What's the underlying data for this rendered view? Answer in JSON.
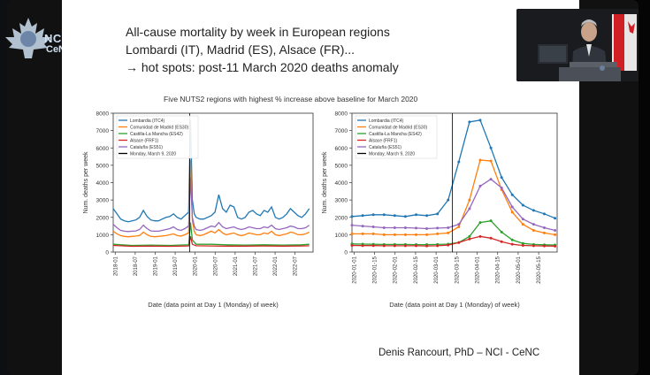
{
  "slide": {
    "title_lines": [
      "All-cause mortality by week in European regions",
      "Lombardi (IT), Madrid (ES), Alsace (FR)...",
      "→ hot spots: post-11 March 2020 deaths anomaly"
    ],
    "figure_title": "Five NUTS2 regions with highest % increase above baseline for March 2020",
    "author": "Denis Rancourt, PhD  –  NCI - CeNC",
    "logo_text": "NCI",
    "logo_sub": "CeNC"
  },
  "colors": {
    "lombardia": "#1f77b4",
    "madrid": "#ff7f0e",
    "castilla": "#2ca02c",
    "alsace": "#d62728",
    "cataluna": "#9467bd",
    "monday": "#000000"
  },
  "chart_data": [
    {
      "type": "line",
      "xlabel": "Date (data point at Day 1 (Monday) of week)",
      "ylabel": "Num. deaths per week",
      "ylim": [
        0,
        8000
      ],
      "yticks": [
        "0",
        "1000",
        "2000",
        "3000",
        "4000",
        "5000",
        "6000",
        "7000",
        "8000"
      ],
      "xticks": [
        "2018-01",
        "2018-07",
        "2019-01",
        "2019-07",
        "2020-01",
        "2020-07",
        "2021-01",
        "2021-07",
        "2022-01",
        "2022-07"
      ],
      "xrange": [
        0,
        5.3
      ],
      "vline_x": 2.03,
      "legend": [
        "Lombardia (ITC4)",
        "Comunidad de Madrid (ES30)",
        "Castilla-La Mancha (ES42)",
        "Alsace (FRF1)",
        "Cataluña (ES51)",
        "Monday, March 9, 2020"
      ],
      "series": [
        {
          "name": "Lombardia (ITC4)",
          "x": [
            0,
            0.1,
            0.2,
            0.3,
            0.4,
            0.5,
            0.6,
            0.7,
            0.8,
            0.9,
            1.0,
            1.1,
            1.2,
            1.3,
            1.4,
            1.5,
            1.6,
            1.7,
            1.8,
            1.9,
            2.0,
            2.05,
            2.1,
            2.15,
            2.2,
            2.3,
            2.4,
            2.5,
            2.6,
            2.7,
            2.8,
            2.9,
            3.0,
            3.1,
            3.2,
            3.3,
            3.4,
            3.5,
            3.6,
            3.7,
            3.8,
            3.9,
            4.0,
            4.1,
            4.2,
            4.3,
            4.4,
            4.5,
            4.6,
            4.7,
            4.8,
            4.9,
            5.0,
            5.1,
            5.2
          ],
          "values": [
            2500,
            2200,
            1900,
            1800,
            1750,
            1800,
            1850,
            2000,
            2400,
            2050,
            1850,
            1800,
            1800,
            1900,
            2000,
            2050,
            2200,
            2000,
            1900,
            2100,
            2300,
            7600,
            3000,
            2200,
            2000,
            1900,
            1900,
            2000,
            2100,
            2300,
            3300,
            2500,
            2300,
            2700,
            2600,
            2000,
            1900,
            2000,
            2300,
            2400,
            2200,
            2100,
            2400,
            2300,
            2600,
            2000,
            1900,
            2000,
            2200,
            2500,
            2300,
            2100,
            2000,
            2200,
            2500
          ]
        },
        {
          "name": "Comunidad de Madrid (ES30)",
          "x": [
            0,
            0.1,
            0.2,
            0.3,
            0.4,
            0.5,
            0.6,
            0.7,
            0.8,
            0.9,
            1.0,
            1.1,
            1.2,
            1.3,
            1.4,
            1.5,
            1.6,
            1.7,
            1.8,
            1.9,
            2.0,
            2.05,
            2.1,
            2.15,
            2.2,
            2.3,
            2.4,
            2.5,
            2.6,
            2.7,
            2.8,
            2.9,
            3.0,
            3.1,
            3.2,
            3.3,
            3.4,
            3.5,
            3.6,
            3.7,
            3.8,
            3.9,
            4.0,
            4.1,
            4.2,
            4.3,
            4.4,
            4.5,
            4.6,
            4.7,
            4.8,
            4.9,
            5.0,
            5.1,
            5.2
          ],
          "values": [
            1200,
            1050,
            950,
            900,
            880,
            900,
            920,
            950,
            1150,
            1000,
            900,
            880,
            900,
            920,
            950,
            1000,
            1050,
            950,
            920,
            1000,
            1100,
            5300,
            1800,
            1200,
            1000,
            950,
            1000,
            1100,
            1200,
            1100,
            1300,
            1100,
            1000,
            1050,
            1100,
            1000,
            950,
            1000,
            1100,
            1050,
            1000,
            1000,
            1100,
            1050,
            1200,
            1000,
            950,
            1000,
            1050,
            1150,
            1100,
            1000,
            1000,
            1050,
            1150
          ]
        },
        {
          "name": "Castilla-La Mancha (ES42)",
          "x": [
            0,
            0.5,
            1.0,
            1.5,
            2.0,
            2.05,
            2.1,
            2.2,
            2.6,
            3.0,
            3.5,
            4.0,
            4.5,
            5.0,
            5.2
          ],
          "values": [
            450,
            380,
            400,
            380,
            420,
            1700,
            700,
            450,
            450,
            420,
            400,
            420,
            400,
            420,
            450
          ]
        },
        {
          "name": "Alsace (FRF1)",
          "x": [
            0,
            0.5,
            1.0,
            1.5,
            2.0,
            2.05,
            2.1,
            2.2,
            2.6,
            3.0,
            3.5,
            4.0,
            4.5,
            5.0,
            5.2
          ],
          "values": [
            380,
            330,
            340,
            330,
            350,
            900,
            450,
            360,
            350,
            340,
            340,
            350,
            340,
            350,
            360
          ]
        },
        {
          "name": "Cataluña (ES51)",
          "x": [
            0,
            0.1,
            0.2,
            0.3,
            0.4,
            0.5,
            0.6,
            0.7,
            0.8,
            0.9,
            1.0,
            1.1,
            1.2,
            1.3,
            1.4,
            1.5,
            1.6,
            1.7,
            1.8,
            1.9,
            2.0,
            2.05,
            2.1,
            2.15,
            2.2,
            2.3,
            2.4,
            2.5,
            2.6,
            2.7,
            2.8,
            2.9,
            3.0,
            3.1,
            3.2,
            3.3,
            3.4,
            3.5,
            3.6,
            3.7,
            3.8,
            3.9,
            4.0,
            4.1,
            4.2,
            4.3,
            4.4,
            4.5,
            4.6,
            4.7,
            4.8,
            4.9,
            5.0,
            5.1,
            5.2
          ],
          "values": [
            1600,
            1400,
            1250,
            1200,
            1180,
            1200,
            1220,
            1300,
            1550,
            1350,
            1220,
            1200,
            1200,
            1250,
            1300,
            1350,
            1450,
            1300,
            1250,
            1350,
            1500,
            4300,
            2000,
            1500,
            1300,
            1250,
            1300,
            1400,
            1500,
            1450,
            1700,
            1450,
            1350,
            1400,
            1450,
            1350,
            1300,
            1350,
            1450,
            1400,
            1350,
            1350,
            1450,
            1400,
            1550,
            1350,
            1300,
            1350,
            1400,
            1500,
            1450,
            1350,
            1350,
            1400,
            1550
          ]
        }
      ]
    },
    {
      "type": "line",
      "xlabel": "Date (data point at Day 1 (Monday) of week)",
      "ylabel": "Num. deaths per week",
      "ylim": [
        0,
        8000
      ],
      "yticks": [
        "0",
        "1000",
        "2000",
        "3000",
        "4000",
        "5000",
        "6000",
        "7000",
        "8000"
      ],
      "xticks": [
        "2020-01-01",
        "2020-01-15",
        "2020-02-01",
        "2020-02-15",
        "2020-03-01",
        "2020-03-15",
        "2020-04-01",
        "2020-04-15",
        "2020-05-01",
        "2020-05-15"
      ],
      "xrange": [
        0,
        19.2
      ],
      "vline_x": 9.4,
      "legend": [
        "Lombardia (ITC4)",
        "Comunidad de Madrid (ES30)",
        "Castilla-La Mancha (ES42)",
        "Alsace (FRF1)",
        "Cataluña (ES51)",
        "Monday, March 9, 2020"
      ],
      "series": [
        {
          "name": "Lombardia (ITC4)",
          "x": [
            0,
            1,
            2,
            3,
            4,
            5,
            6,
            7,
            8,
            9,
            10,
            11,
            12,
            13,
            14,
            15,
            16,
            17,
            18,
            19
          ],
          "values": [
            2050,
            2100,
            2150,
            2150,
            2100,
            2050,
            2150,
            2100,
            2200,
            3000,
            5200,
            7500,
            7600,
            6000,
            4300,
            3300,
            2700,
            2400,
            2200,
            1950
          ]
        },
        {
          "name": "Comunidad de Madrid (ES30)",
          "x": [
            0,
            1,
            2,
            3,
            4,
            5,
            6,
            7,
            8,
            9,
            10,
            11,
            12,
            13,
            14,
            15,
            16,
            17,
            18,
            19
          ],
          "values": [
            1050,
            1050,
            1050,
            1000,
            1000,
            1000,
            1000,
            1000,
            1050,
            1100,
            1450,
            3000,
            5300,
            5250,
            3600,
            2300,
            1600,
            1250,
            1100,
            1000
          ]
        },
        {
          "name": "Castilla-La Mancha (ES42)",
          "x": [
            0,
            1,
            2,
            3,
            4,
            5,
            6,
            7,
            8,
            9,
            10,
            11,
            12,
            13,
            14,
            15,
            16,
            17,
            18,
            19
          ],
          "values": [
            470,
            460,
            450,
            440,
            440,
            440,
            430,
            430,
            440,
            460,
            550,
            900,
            1700,
            1800,
            1150,
            700,
            500,
            440,
            420,
            410
          ]
        },
        {
          "name": "Alsace (FRF1)",
          "x": [
            0,
            1,
            2,
            3,
            4,
            5,
            6,
            7,
            8,
            9,
            10,
            11,
            12,
            13,
            14,
            15,
            16,
            17,
            18,
            19
          ],
          "values": [
            380,
            370,
            370,
            360,
            360,
            360,
            360,
            350,
            360,
            400,
            550,
            750,
            900,
            800,
            600,
            450,
            380,
            360,
            350,
            340
          ]
        },
        {
          "name": "Cataluña (ES51)",
          "x": [
            0,
            1,
            2,
            3,
            4,
            5,
            6,
            7,
            8,
            9,
            10,
            11,
            12,
            13,
            14,
            15,
            16,
            17,
            18,
            19
          ],
          "values": [
            1550,
            1500,
            1450,
            1400,
            1400,
            1400,
            1380,
            1350,
            1380,
            1400,
            1600,
            2500,
            3800,
            4200,
            3700,
            2600,
            1900,
            1600,
            1400,
            1250
          ]
        }
      ]
    }
  ]
}
